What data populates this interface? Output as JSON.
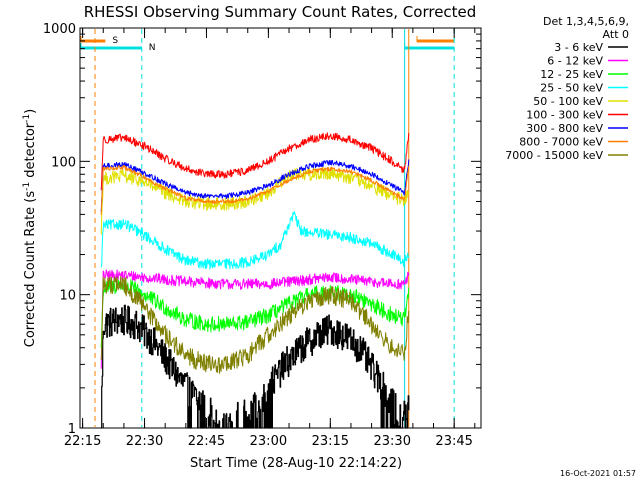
{
  "chart_data": {
    "type": "line",
    "title": "RHESSI Observing Summary Count Rates, Corrected",
    "ylabel": "Corrected Count Rate (s⁻¹ detector⁻¹)",
    "ylabel_parts": {
      "pre": "Corrected Count Rate (s",
      "sup1": "-1",
      "mid": " detector",
      "sup2": "-1",
      "post": ")"
    },
    "xlabel": "Start Time (28-Aug-10 22:14:22)",
    "timestamp": "16-Oct-2021 01:57",
    "y_scale": "log",
    "ylim": [
      1,
      1000
    ],
    "y_ticks": [
      1,
      10,
      100,
      1000
    ],
    "y_tick_labels": [
      "1",
      "10",
      "100",
      "1000"
    ],
    "xlim": [
      "22:14:22",
      "23:51:30"
    ],
    "x_ticks": [
      "22:15",
      "22:30",
      "22:45",
      "23:00",
      "23:15",
      "23:30",
      "23:45"
    ],
    "grid": false,
    "background": "#ffffff",
    "legend": {
      "position": "top-right",
      "header": "Det 1,3,4,5,6,9,",
      "header2": "Att 0"
    },
    "flags": [
      {
        "label": "S",
        "color": "#ff8000",
        "segments": [
          [
            "22:14:22",
            "22:20:30"
          ],
          [
            "23:36:00",
            "23:45:00"
          ]
        ]
      },
      {
        "label": "N",
        "color": "#00e0e0",
        "segments": [
          [
            "22:14:22",
            "22:29:20"
          ],
          [
            "23:33:00",
            "23:45:00"
          ]
        ]
      }
    ],
    "vlines": [
      {
        "time": "22:14:22",
        "color": "#00e0e0",
        "style": "solid"
      },
      {
        "time": "22:18:00",
        "color": "#ff8000",
        "style": "dashed"
      },
      {
        "time": "22:29:20",
        "color": "#00e0e0",
        "style": "dashed"
      },
      {
        "time": "23:33:00",
        "color": "#00e0e0",
        "style": "solid"
      },
      {
        "time": "23:34:00",
        "color": "#ff8000",
        "style": "solid"
      },
      {
        "time": "23:45:00",
        "color": "#00e0e0",
        "style": "dashed"
      }
    ],
    "data_interval": [
      "22:19:30",
      "23:34:00"
    ],
    "series": [
      {
        "name": "3 - 6 keV",
        "color": "#000000",
        "noise": 0.12,
        "step": true,
        "lowfloor": true,
        "points": [
          [
            "22:19:30",
            1.2
          ],
          [
            "22:20:00",
            6.0
          ],
          [
            "22:24:00",
            6.5
          ],
          [
            "22:28:00",
            6.0
          ],
          [
            "22:32:00",
            4.5
          ],
          [
            "22:36:00",
            3.0
          ],
          [
            "22:40:00",
            2.0
          ],
          [
            "22:44:00",
            1.5
          ],
          [
            "22:48:00",
            1.2
          ],
          [
            "22:52:00",
            1.2
          ],
          [
            "22:56:00",
            1.3
          ],
          [
            "23:00:00",
            2.0
          ],
          [
            "23:04:00",
            3.0
          ],
          [
            "23:08:00",
            4.0
          ],
          [
            "23:12:00",
            5.0
          ],
          [
            "23:15:00",
            5.5
          ],
          [
            "23:18:00",
            5.0
          ],
          [
            "23:22:00",
            4.0
          ],
          [
            "23:26:00",
            2.5
          ],
          [
            "23:30:00",
            1.5
          ],
          [
            "23:32:00",
            1.2
          ],
          [
            "23:34:00",
            1.5
          ]
        ]
      },
      {
        "name": "6 - 12 keV",
        "color": "#ff00ff",
        "noise": 0.04,
        "points": [
          [
            "22:19:30",
            3.0
          ],
          [
            "22:20:00",
            14.0
          ],
          [
            "22:25:00",
            14.0
          ],
          [
            "22:30:00",
            13.5
          ],
          [
            "22:40:00",
            12.5
          ],
          [
            "22:50:00",
            12.0
          ],
          [
            "23:00:00",
            12.0
          ],
          [
            "23:10:00",
            13.0
          ],
          [
            "23:15:00",
            13.5
          ],
          [
            "23:20:00",
            13.0
          ],
          [
            "23:25:00",
            12.5
          ],
          [
            "23:30:00",
            12.0
          ],
          [
            "23:33:00",
            12.0
          ],
          [
            "23:34:00",
            14.0
          ]
        ]
      },
      {
        "name": "12 - 25 keV",
        "color": "#00ff00",
        "noise": 0.06,
        "points": [
          [
            "22:19:30",
            4.0
          ],
          [
            "22:20:00",
            11.0
          ],
          [
            "22:25:00",
            12.0
          ],
          [
            "22:30:00",
            10.0
          ],
          [
            "22:35:00",
            8.0
          ],
          [
            "22:40:00",
            6.5
          ],
          [
            "22:45:00",
            6.0
          ],
          [
            "22:50:00",
            6.0
          ],
          [
            "22:55:00",
            6.2
          ],
          [
            "23:00:00",
            7.0
          ],
          [
            "23:05:00",
            8.5
          ],
          [
            "23:10:00",
            10.0
          ],
          [
            "23:15:00",
            10.5
          ],
          [
            "23:20:00",
            10.0
          ],
          [
            "23:25:00",
            8.5
          ],
          [
            "23:30:00",
            7.0
          ],
          [
            "23:33:00",
            6.5
          ],
          [
            "23:34:00",
            10.0
          ]
        ]
      },
      {
        "name": "25 - 50 keV",
        "color": "#00ffff",
        "noise": 0.04,
        "points": [
          [
            "22:19:30",
            15.0
          ],
          [
            "22:20:00",
            33.0
          ],
          [
            "22:25:00",
            34.0
          ],
          [
            "22:30:00",
            28.0
          ],
          [
            "22:35:00",
            22.0
          ],
          [
            "22:40:00",
            18.0
          ],
          [
            "22:45:00",
            17.0
          ],
          [
            "22:50:00",
            17.0
          ],
          [
            "22:55:00",
            17.5
          ],
          [
            "23:00:00",
            20.0
          ],
          [
            "23:03:00",
            24.0
          ],
          [
            "23:06:00",
            40.0
          ],
          [
            "23:08:00",
            30.0
          ],
          [
            "23:15:00",
            28.0
          ],
          [
            "23:20:00",
            27.0
          ],
          [
            "23:25:00",
            24.0
          ],
          [
            "23:30:00",
            20.0
          ],
          [
            "23:33:00",
            17.5
          ],
          [
            "23:34:00",
            20.0
          ]
        ]
      },
      {
        "name": "50 - 100 keV",
        "color": "#e0e000",
        "noise": 0.05,
        "points": [
          [
            "22:19:30",
            30.0
          ],
          [
            "22:20:00",
            74.0
          ],
          [
            "22:25:00",
            78.0
          ],
          [
            "22:30:00",
            70.0
          ],
          [
            "22:35:00",
            58.0
          ],
          [
            "22:40:00",
            50.0
          ],
          [
            "22:45:00",
            48.0
          ],
          [
            "22:50:00",
            48.0
          ],
          [
            "22:55:00",
            50.0
          ],
          [
            "23:00:00",
            58.0
          ],
          [
            "23:03:00",
            70.0
          ],
          [
            "23:06:00",
            82.0
          ],
          [
            "23:10:00",
            80.0
          ],
          [
            "23:15:00",
            82.0
          ],
          [
            "23:20:00",
            75.0
          ],
          [
            "23:25:00",
            65.0
          ],
          [
            "23:30:00",
            55.0
          ],
          [
            "23:33:00",
            50.0
          ],
          [
            "23:34:00",
            60.0
          ]
        ]
      },
      {
        "name": "100 - 300 keV",
        "color": "#ff0000",
        "noise": 0.03,
        "points": [
          [
            "22:19:30",
            60.0
          ],
          [
            "22:20:00",
            145.0
          ],
          [
            "22:25:00",
            150.0
          ],
          [
            "22:30:00",
            130.0
          ],
          [
            "22:35:00",
            105.0
          ],
          [
            "22:40:00",
            88.0
          ],
          [
            "22:45:00",
            80.0
          ],
          [
            "22:50:00",
            80.0
          ],
          [
            "22:55:00",
            85.0
          ],
          [
            "23:00:00",
            100.0
          ],
          [
            "23:05:00",
            125.0
          ],
          [
            "23:10:00",
            145.0
          ],
          [
            "23:15:00",
            155.0
          ],
          [
            "23:20:00",
            145.0
          ],
          [
            "23:25:00",
            125.0
          ],
          [
            "23:30:00",
            100.0
          ],
          [
            "23:33:00",
            85.0
          ],
          [
            "23:34:00",
            160.0
          ]
        ]
      },
      {
        "name": "300 - 800 keV",
        "color": "#0000ff",
        "noise": 0.02,
        "points": [
          [
            "22:19:30",
            40.0
          ],
          [
            "22:20:00",
            92.0
          ],
          [
            "22:25:00",
            95.0
          ],
          [
            "22:30:00",
            82.0
          ],
          [
            "22:35:00",
            68.0
          ],
          [
            "22:40:00",
            58.0
          ],
          [
            "22:45:00",
            55.0
          ],
          [
            "22:50:00",
            55.0
          ],
          [
            "22:55:00",
            58.0
          ],
          [
            "23:00:00",
            66.0
          ],
          [
            "23:05:00",
            80.0
          ],
          [
            "23:10:00",
            92.0
          ],
          [
            "23:15:00",
            98.0
          ],
          [
            "23:20:00",
            92.0
          ],
          [
            "23:25:00",
            80.0
          ],
          [
            "23:30:00",
            66.0
          ],
          [
            "23:33:00",
            58.0
          ],
          [
            "23:34:00",
            100.0
          ]
        ]
      },
      {
        "name": "800 - 7000 keV",
        "color": "#ff8000",
        "noise": 0.015,
        "points": [
          [
            "22:19:30",
            40.0
          ],
          [
            "22:20:00",
            88.0
          ],
          [
            "22:25:00",
            90.0
          ],
          [
            "22:30:00",
            76.0
          ],
          [
            "22:35:00",
            62.0
          ],
          [
            "22:40:00",
            53.0
          ],
          [
            "22:45:00",
            50.0
          ],
          [
            "22:50:00",
            50.0
          ],
          [
            "22:55:00",
            52.0
          ],
          [
            "23:00:00",
            60.0
          ],
          [
            "23:05:00",
            72.0
          ],
          [
            "23:10:00",
            84.0
          ],
          [
            "23:15:00",
            88.0
          ],
          [
            "23:20:00",
            84.0
          ],
          [
            "23:25:00",
            72.0
          ],
          [
            "23:30:00",
            58.0
          ],
          [
            "23:33:00",
            52.0
          ],
          [
            "23:34:00",
            95.0
          ]
        ]
      },
      {
        "name": "7000 - 15000 keV",
        "color": "#808000",
        "noise": 0.07,
        "points": [
          [
            "22:19:30",
            3.0
          ],
          [
            "22:20:00",
            12.0
          ],
          [
            "22:25:00",
            12.0
          ],
          [
            "22:30:00",
            8.0
          ],
          [
            "22:35:00",
            5.0
          ],
          [
            "22:40:00",
            3.5
          ],
          [
            "22:45:00",
            3.0
          ],
          [
            "22:50:00",
            3.0
          ],
          [
            "22:55:00",
            3.5
          ],
          [
            "23:00:00",
            5.0
          ],
          [
            "23:05:00",
            7.0
          ],
          [
            "23:10:00",
            9.0
          ],
          [
            "23:15:00",
            10.0
          ],
          [
            "23:20:00",
            9.0
          ],
          [
            "23:25:00",
            6.0
          ],
          [
            "23:30:00",
            4.0
          ],
          [
            "23:33:00",
            3.5
          ],
          [
            "23:34:00",
            8.0
          ]
        ]
      }
    ]
  }
}
